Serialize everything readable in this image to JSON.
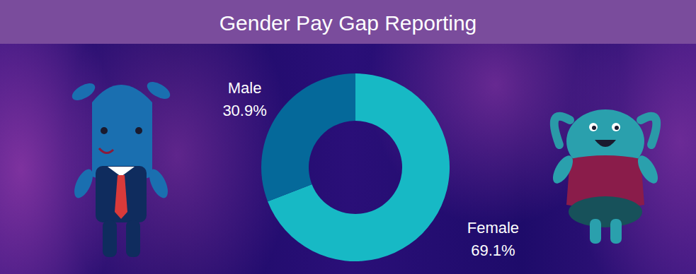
{
  "chart_data": {
    "type": "donut",
    "title": "Gender Pay Gap Reporting",
    "categories": [
      "Male",
      "Female"
    ],
    "values": [
      30.9,
      69.1
    ],
    "value_labels": [
      "30.9%",
      "69.1%"
    ],
    "colors": [
      "#05699a",
      "#17b9c5"
    ],
    "data_labels": true
  }
}
